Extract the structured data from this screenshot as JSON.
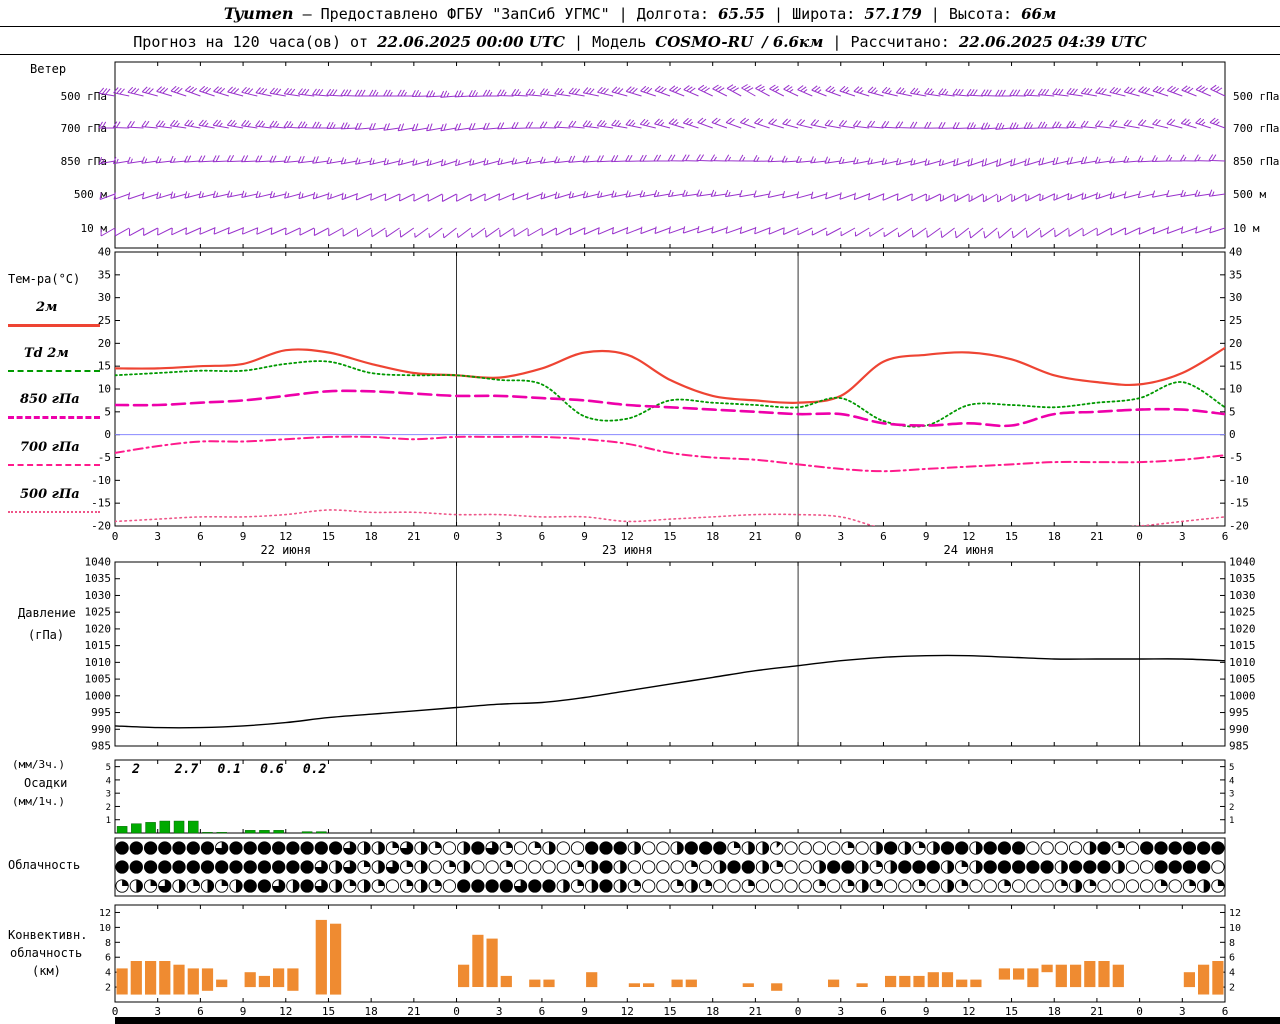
{
  "header": {
    "line1": {
      "station": "Tyumen",
      "provided": "— Предоставлено ФГБУ \"ЗапСиб УГМС\"",
      "lon_label": "| Долгота:",
      "lon": "65.55",
      "lat_label": "| Широта:",
      "lat": "57.179",
      "alt_label": "| Высота:",
      "alt": "66м"
    },
    "line2": {
      "prefix": "Прогноз на 120 часа(ов) от",
      "init_time": "22.06.2025 00:00 UTC",
      "model_label": "| Модель",
      "model_name": "COSMO-RU",
      "model_res": "/ 6.6км",
      "calc_label": "| Рассчитано:",
      "calc_time": "22.06.2025 04:39 UTC"
    }
  },
  "labels": {
    "wind_title": "Ветер",
    "temp_title": "Тем-ра(°C)",
    "legend": [
      {
        "name": "2м"
      },
      {
        "name": "Td 2м"
      },
      {
        "name": "850 гПа"
      },
      {
        "name": "700 гПа"
      },
      {
        "name": "500 гПа"
      }
    ],
    "pressure1": "Давление",
    "pressure2": "(гПа)",
    "precip1": "(мм/3ч.)",
    "precip2": "Осадки",
    "precip3": "(мм/1ч.)",
    "cloud_title": "Облачность",
    "conv1": "Конвективн.",
    "conv2": "облачность",
    "conv3": "(км)"
  },
  "colors": {
    "barb": "#9932cc",
    "t2m": "#ee4433",
    "td": "#009900",
    "t850": "#ee00aa",
    "t700": "#ff1a8c",
    "t500": "#ee5588",
    "pressure": "#000000",
    "precip": "#00aa00",
    "conv": "#ef8b31",
    "zero_line": "#8888ff",
    "frame": "#000000"
  },
  "time_axis": {
    "tick_hours": [
      0,
      3,
      6,
      9,
      12,
      15,
      18,
      21,
      24,
      27,
      30,
      33,
      36,
      39,
      42,
      45,
      48,
      51,
      54,
      57,
      60,
      63,
      66,
      69,
      72,
      75,
      78
    ],
    "tick_labels": [
      "0",
      "3",
      "6",
      "9",
      "12",
      "15",
      "18",
      "21",
      "0",
      "3",
      "6",
      "9",
      "12",
      "15",
      "18",
      "21",
      "0",
      "3",
      "6",
      "9",
      "12",
      "15",
      "18",
      "21",
      "0",
      "3",
      "6"
    ],
    "day_lines": [
      24,
      48,
      72
    ],
    "day_labels": [
      {
        "h": 12,
        "label": "22 июня"
      },
      {
        "h": 36,
        "label": "23 июня"
      },
      {
        "h": 60,
        "label": "24 июня"
      }
    ]
  },
  "chart_data": [
    {
      "type": "wind-barbs",
      "title": "Ветер",
      "x_step_hours": 3,
      "levels": [
        {
          "label": "500 гПа",
          "speeds": [
            14,
            14,
            15,
            15,
            16,
            15,
            14,
            13,
            12,
            12,
            13,
            14,
            15,
            16,
            15,
            14,
            13,
            12,
            12,
            13,
            14,
            15,
            16,
            15,
            14,
            15,
            16
          ],
          "dirs": [
            280,
            285,
            290,
            285,
            280,
            275,
            270,
            270,
            265,
            270,
            275,
            280,
            285,
            290,
            295,
            300,
            295,
            290,
            285,
            280,
            275,
            270,
            275,
            280,
            285,
            290,
            295
          ]
        },
        {
          "label": "700 гПа",
          "speeds": [
            10,
            11,
            12,
            12,
            13,
            12,
            11,
            10,
            9,
            9,
            10,
            11,
            12,
            12,
            11,
            10,
            10,
            9,
            9,
            10,
            11,
            12,
            12,
            11,
            10,
            11,
            12
          ],
          "dirs": [
            270,
            275,
            280,
            280,
            275,
            270,
            265,
            260,
            260,
            265,
            270,
            275,
            280,
            285,
            290,
            290,
            285,
            280,
            275,
            270,
            268,
            265,
            270,
            275,
            280,
            285,
            290
          ]
        },
        {
          "label": "850 гПа",
          "speeds": [
            8,
            8,
            9,
            9,
            10,
            9,
            8,
            7,
            7,
            8,
            8,
            9,
            9,
            10,
            9,
            8,
            8,
            7,
            7,
            8,
            9,
            9,
            10,
            9,
            8,
            8,
            9
          ],
          "dirs": [
            260,
            262,
            266,
            268,
            266,
            262,
            258,
            255,
            252,
            255,
            260,
            265,
            268,
            270,
            272,
            270,
            266,
            262,
            258,
            255,
            252,
            250,
            255,
            260,
            265,
            270,
            272
          ]
        },
        {
          "label": "500 м",
          "speeds": [
            6,
            6,
            7,
            7,
            8,
            7,
            6,
            6,
            5,
            6,
            6,
            7,
            7,
            8,
            7,
            6,
            6,
            5,
            5,
            6,
            7,
            7,
            8,
            7,
            6,
            6,
            7
          ],
          "dirs": [
            250,
            252,
            255,
            258,
            256,
            252,
            248,
            244,
            242,
            245,
            250,
            255,
            258,
            260,
            262,
            260,
            256,
            252,
            248,
            245,
            242,
            240,
            245,
            250,
            255,
            260,
            262
          ]
        },
        {
          "label": "10 м",
          "speeds": [
            4,
            4,
            5,
            5,
            6,
            5,
            4,
            4,
            3,
            4,
            4,
            5,
            5,
            6,
            5,
            4,
            4,
            3,
            3,
            4,
            5,
            5,
            6,
            5,
            4,
            4,
            5
          ],
          "dirs": [
            240,
            242,
            246,
            248,
            246,
            242,
            238,
            235,
            232,
            235,
            240,
            245,
            248,
            250,
            252,
            250,
            246,
            242,
            238,
            235,
            232,
            230,
            235,
            240,
            245,
            250,
            252
          ]
        }
      ]
    },
    {
      "type": "line",
      "title": "Тем-ра(°C)",
      "ylim": [
        -20,
        40
      ],
      "ytick_step": 5,
      "x_hours": [
        0,
        3,
        6,
        9,
        12,
        15,
        18,
        21,
        24,
        27,
        30,
        33,
        36,
        39,
        42,
        45,
        48,
        51,
        54,
        57,
        60,
        63,
        66,
        69,
        72,
        75,
        78
      ],
      "series": [
        {
          "name": "2м",
          "color": "#ee4433",
          "width": 2.2,
          "dash": "",
          "values": [
            14.5,
            14.5,
            15,
            15.5,
            18.5,
            18,
            15.5,
            13.5,
            13,
            12.5,
            14.5,
            18,
            17.5,
            12,
            8.5,
            7.5,
            7,
            8.5,
            16,
            17.5,
            18,
            16.5,
            13,
            11.5,
            11,
            13.5,
            19
          ]
        },
        {
          "name": "Td 2м",
          "color": "#009900",
          "width": 1.8,
          "dash": "2 3",
          "values": [
            13,
            13.5,
            14,
            14,
            15.5,
            16,
            13.5,
            13,
            13,
            12,
            11,
            4,
            3.5,
            7.5,
            7,
            6.5,
            6,
            8,
            3,
            2,
            6.5,
            6.5,
            6,
            7,
            8,
            11.5,
            6
          ]
        },
        {
          "name": "850 гПа",
          "color": "#ee00aa",
          "width": 2.6,
          "dash": "13 6",
          "values": [
            6.5,
            6.5,
            7,
            7.5,
            8.5,
            9.5,
            9.5,
            9,
            8.5,
            8.5,
            8,
            7.5,
            6.5,
            6,
            5.5,
            5,
            4.5,
            4.5,
            2.5,
            2,
            2.5,
            2,
            4.5,
            5,
            5.5,
            5.5,
            4.5
          ]
        },
        {
          "name": "700 гПа",
          "color": "#ff1a8c",
          "width": 2,
          "dash": "9 4 2 4",
          "values": [
            -4,
            -2.5,
            -1.5,
            -1.5,
            -1,
            -0.5,
            -0.5,
            -1,
            -0.5,
            -0.5,
            -0.5,
            -1,
            -2,
            -4,
            -5,
            -5.5,
            -6.5,
            -7.5,
            -8,
            -7.5,
            -7,
            -6.5,
            -6,
            -6,
            -6,
            -5.5,
            -4.5
          ]
        },
        {
          "name": "500 гПа",
          "color": "#ee5588",
          "width": 1.6,
          "dash": "1.5 3.5",
          "values": [
            -19,
            -18.5,
            -18,
            -18,
            -17.5,
            -16.5,
            -17,
            -17,
            -17.5,
            -17.5,
            -18,
            -18,
            -19,
            -18.5,
            -18,
            -17.5,
            -17.5,
            -18,
            -20.5,
            -21,
            -21,
            -20.5,
            -20.5,
            -20.5,
            -20,
            -19,
            -18
          ]
        }
      ]
    },
    {
      "type": "line",
      "title": "Давление (гПа)",
      "ylim": [
        985,
        1040
      ],
      "ytick_step": 5,
      "x_hours": [
        0,
        3,
        6,
        9,
        12,
        15,
        18,
        21,
        24,
        27,
        30,
        33,
        36,
        39,
        42,
        45,
        48,
        51,
        54,
        57,
        60,
        63,
        66,
        69,
        72,
        75,
        78
      ],
      "series": [
        {
          "name": "Давление",
          "color": "#000000",
          "width": 1.4,
          "dash": "",
          "values": [
            991,
            990.5,
            990.5,
            991,
            992,
            993.5,
            994.5,
            995.5,
            996.5,
            997.5,
            998,
            999.5,
            1001.5,
            1003.5,
            1005.5,
            1007.5,
            1009,
            1010.5,
            1011.5,
            1012,
            1012,
            1011.5,
            1011,
            1011,
            1011,
            1011,
            1010.5
          ]
        }
      ]
    },
    {
      "type": "bar",
      "title": "Осадки",
      "units_bars": "мм/1ч.",
      "units_sums": "мм/3ч.",
      "ylim": [
        0,
        5.5
      ],
      "yticks": [
        1,
        2,
        3,
        4,
        5
      ],
      "color": "#00aa00",
      "hours": [
        1,
        2,
        3,
        4,
        5,
        6,
        7,
        8,
        10,
        11,
        12,
        14,
        15
      ],
      "values": [
        0.5,
        0.7,
        0.8,
        0.9,
        0.9,
        0.9,
        0.05,
        0.05,
        0.2,
        0.2,
        0.2,
        0.1,
        0.1
      ],
      "sum_labels": [
        {
          "h": 1.2,
          "text": "2"
        },
        {
          "h": 4.2,
          "text": "2.7"
        },
        {
          "h": 7.2,
          "text": "0.1"
        },
        {
          "h": 10.2,
          "text": "0.6"
        },
        {
          "h": 13.2,
          "text": "0.2"
        }
      ]
    },
    {
      "type": "cloud-symbols",
      "title": "Облачность",
      "symbol": "okta (0-8 filled eighths per hour)",
      "rows": [
        [
          8,
          8,
          8,
          8,
          8,
          8,
          8,
          6,
          8,
          8,
          8,
          8,
          8,
          8,
          8,
          8,
          6,
          4,
          4,
          2,
          6,
          4,
          2,
          0,
          4,
          8,
          6,
          2,
          0,
          2,
          4,
          0,
          0,
          8,
          8,
          8,
          4,
          0,
          0,
          4,
          8,
          8,
          8,
          2,
          4,
          4,
          1,
          0,
          0,
          0,
          0,
          2,
          0,
          4,
          8,
          4,
          2,
          4,
          8,
          8,
          4,
          8,
          8,
          8,
          0,
          0,
          0,
          0,
          4,
          8,
          2,
          0,
          8,
          8,
          8,
          8,
          8,
          8
        ],
        [
          8,
          8,
          8,
          8,
          8,
          8,
          8,
          8,
          8,
          8,
          8,
          8,
          8,
          8,
          6,
          4,
          6,
          2,
          4,
          6,
          2,
          4,
          0,
          2,
          4,
          0,
          0,
          2,
          0,
          0,
          0,
          0,
          2,
          4,
          8,
          4,
          0,
          0,
          0,
          0,
          2,
          0,
          4,
          8,
          8,
          4,
          2,
          0,
          0,
          4,
          8,
          8,
          4,
          2,
          4,
          8,
          8,
          8,
          4,
          2,
          4,
          8,
          8,
          8,
          8,
          8,
          4,
          8,
          8,
          8,
          4,
          0,
          0,
          8,
          8,
          8,
          8,
          0
        ],
        [
          2,
          4,
          2,
          6,
          4,
          2,
          4,
          2,
          4,
          8,
          8,
          6,
          4,
          8,
          6,
          4,
          2,
          4,
          2,
          0,
          2,
          4,
          2,
          0,
          8,
          8,
          8,
          8,
          6,
          8,
          8,
          4,
          2,
          4,
          8,
          4,
          2,
          0,
          0,
          2,
          4,
          2,
          0,
          0,
          2,
          0,
          0,
          0,
          0,
          2,
          0,
          2,
          4,
          2,
          0,
          0,
          2,
          0,
          4,
          2,
          0,
          0,
          2,
          0,
          0,
          0,
          2,
          4,
          2,
          0,
          0,
          0,
          0,
          2,
          0,
          2,
          4,
          2
        ]
      ]
    },
    {
      "type": "bar-range",
      "title": "Конвективн. облачность (км)",
      "ylim": [
        0,
        13
      ],
      "yticks": [
        2,
        4,
        6,
        8,
        10,
        12
      ],
      "color": "#ef8b31",
      "bars": [
        [
          1,
          4.5
        ],
        [
          1,
          5.5
        ],
        [
          1,
          5.5
        ],
        [
          1,
          5.5
        ],
        [
          1,
          5
        ],
        [
          1,
          4.5
        ],
        [
          1.5,
          4.5
        ],
        [
          2,
          3
        ],
        null,
        [
          2,
          4
        ],
        [
          2,
          3.5
        ],
        [
          2,
          4.5
        ],
        [
          1.5,
          4.5
        ],
        null,
        [
          1,
          11
        ],
        [
          1,
          10.5
        ],
        null,
        null,
        null,
        null,
        null,
        null,
        null,
        null,
        [
          2,
          5
        ],
        [
          2,
          9
        ],
        [
          2,
          8.5
        ],
        [
          2,
          3.5
        ],
        null,
        [
          2,
          3
        ],
        [
          2,
          3
        ],
        null,
        null,
        [
          2,
          4
        ],
        null,
        null,
        [
          2,
          2.5
        ],
        [
          2,
          2.5
        ],
        null,
        [
          2,
          3
        ],
        [
          2,
          3
        ],
        null,
        null,
        null,
        [
          2,
          2.5
        ],
        null,
        [
          1.5,
          2.5
        ],
        null,
        null,
        null,
        [
          2,
          3
        ],
        null,
        [
          2,
          2.5
        ],
        null,
        [
          2,
          3.5
        ],
        [
          2,
          3.5
        ],
        [
          2,
          3.5
        ],
        [
          2,
          4
        ],
        [
          2,
          4
        ],
        [
          2,
          3
        ],
        [
          2,
          3
        ],
        null,
        [
          3,
          4.5
        ],
        [
          3,
          4.5
        ],
        [
          2,
          4.5
        ],
        [
          4,
          5
        ],
        [
          2,
          5
        ],
        [
          2,
          5
        ],
        [
          2,
          5.5
        ],
        [
          2,
          5.5
        ],
        [
          2,
          5
        ],
        null,
        null,
        null,
        null,
        [
          2,
          4
        ],
        [
          1,
          5
        ],
        [
          1,
          5.5
        ]
      ]
    }
  ]
}
